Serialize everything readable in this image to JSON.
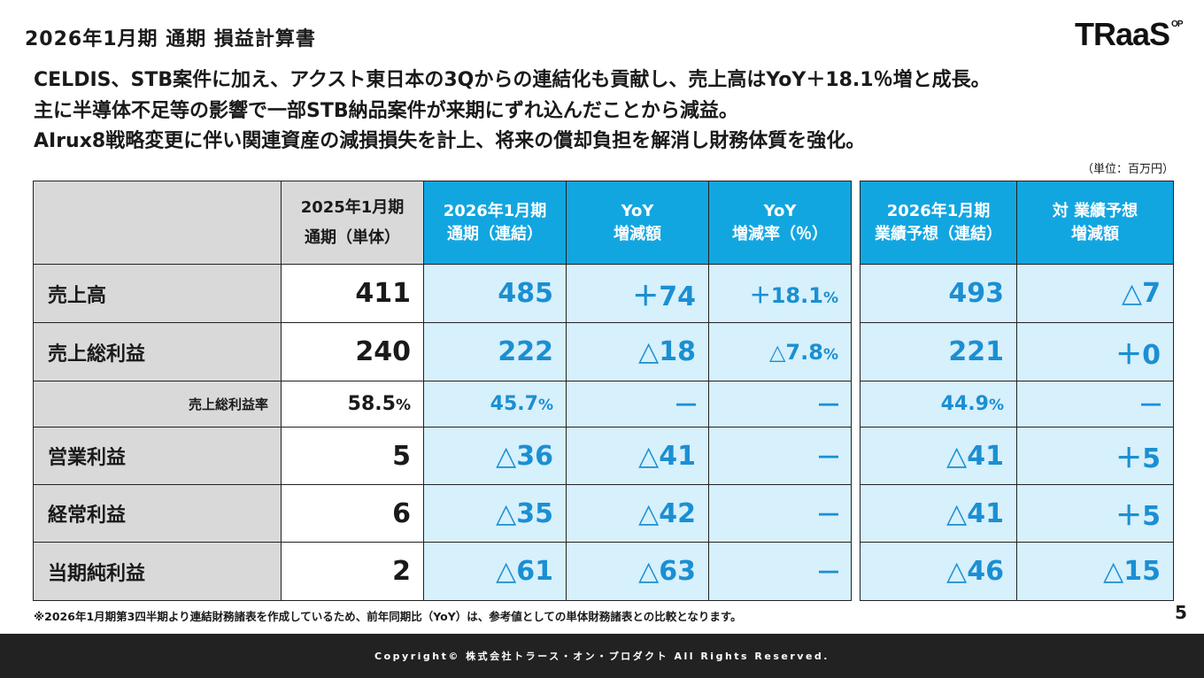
{
  "header": {
    "title": "2026年1月期 通期 損益計算書",
    "logo_text": "TRaaS",
    "logo_sup": "OP"
  },
  "summary": [
    "CELDIS、STB案件に加え、アクスト東日本の3Qからの連結化も貢献し、売上高はYoY＋18.1％増と成長。",
    "主に半導体不足等の影響で一部STB納品案件が来期にずれ込んだことから減益。",
    "AIrux8戦略変更に伴い関連資産の減損損失を計上、将来の償却負担を解消し財務体質を強化。"
  ],
  "unit": "（単位：百万円）",
  "table": {
    "headers": {
      "prev_line1": "2025年1月期",
      "prev_line2": "通期（単体）",
      "curr_line1": "2026年1月期",
      "curr_line2": "通期（連結）",
      "yoy_amt_line1": "YoY",
      "yoy_amt_line2": "増減額",
      "yoy_rate_line1": "YoY",
      "yoy_rate_line2": "増減率（％）",
      "forecast_line1": "2026年1月期",
      "forecast_line2": "業績予想（連結）",
      "vs_forecast_line1": "対 業績予想",
      "vs_forecast_line2": "増減額"
    },
    "rows": [
      {
        "label": "売上高",
        "prev": "411",
        "curr": "485",
        "yoy_amt": "＋74",
        "yoy_rate": "＋18.1",
        "yoy_rate_unit": "%",
        "forecast": "493",
        "vs_forecast": "△7"
      },
      {
        "label": "売上総利益",
        "prev": "240",
        "curr": "222",
        "yoy_amt": "△18",
        "yoy_rate": "△7.8",
        "yoy_rate_unit": "%",
        "forecast": "221",
        "vs_forecast": "＋0"
      },
      {
        "label": "売上総利益率",
        "prev": "58.5",
        "prev_unit": "%",
        "curr": "45.7",
        "curr_unit": "%",
        "yoy_amt": "―",
        "yoy_rate": "―",
        "forecast": "44.9",
        "forecast_unit": "%",
        "vs_forecast": "―"
      },
      {
        "label": "営業利益",
        "prev": "5",
        "curr": "△36",
        "yoy_amt": "△41",
        "yoy_rate": "―",
        "forecast": "△41",
        "vs_forecast": "＋5"
      },
      {
        "label": "経常利益",
        "prev": "6",
        "curr": "△35",
        "yoy_amt": "△42",
        "yoy_rate": "―",
        "forecast": "△41",
        "vs_forecast": "＋5"
      },
      {
        "label": "当期純利益",
        "prev": "2",
        "curr": "△61",
        "yoy_amt": "△63",
        "yoy_rate": "―",
        "forecast": "△46",
        "vs_forecast": "△15"
      }
    ]
  },
  "footnote": "※2026年1月期第3四半期より連結財務諸表を作成しているため、前年同期比（YoY）は、参考値としての単体財務諸表との比較となります。",
  "page_number": "5",
  "footer": {
    "copyright": "Copyright© 株式会社トラース・オン・プロダクト All Rights Reserved."
  },
  "colors": {
    "header_blue": "#12a6e0",
    "cell_blue_bg": "#d6f0fc",
    "value_blue": "#1b8fd2",
    "header_gray": "#d9d9d9",
    "footer_bg": "#222222"
  }
}
